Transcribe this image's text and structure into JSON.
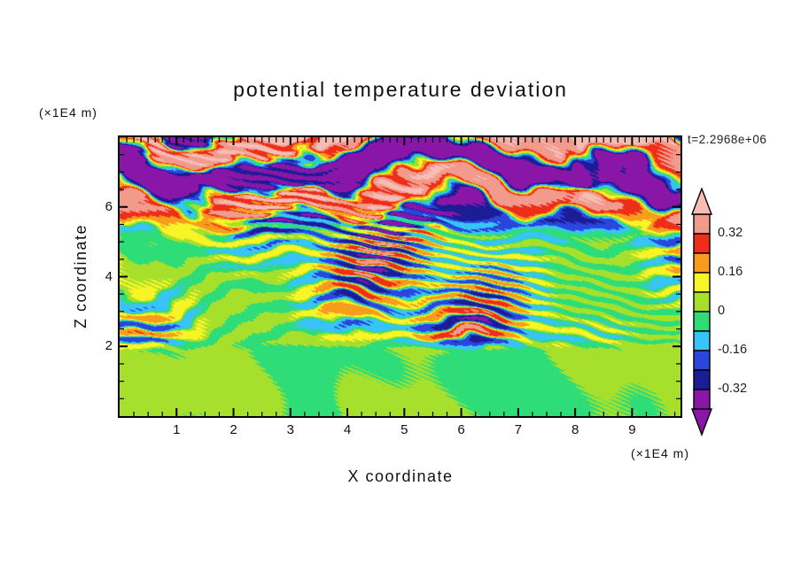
{
  "title": "potential temperature deviation",
  "timestamp_label": "t=2.2968e+06",
  "axes": {
    "x_label": "X coordinate",
    "x_unit": "(×1E4 m)",
    "y_label": "Z coordinate",
    "y_unit": "(×1E4 m)",
    "x_tick_labels": [
      "1",
      "2",
      "3",
      "4",
      "5",
      "6",
      "7",
      "8",
      "9"
    ],
    "x_tick_values": [
      1,
      2,
      3,
      4,
      5,
      6,
      7,
      8,
      9
    ],
    "y_tick_labels": [
      "2",
      "4",
      "6"
    ],
    "y_tick_values": [
      2,
      4,
      6
    ]
  },
  "colorbar": {
    "tick_labels": [
      "0.32",
      "0.16",
      "0",
      "-0.16",
      "-0.32"
    ],
    "tick_values": [
      0.32,
      0.16,
      0,
      -0.16,
      -0.32
    ]
  },
  "chart_data": {
    "type": "heatmap",
    "title": "potential temperature deviation",
    "xlabel": "X coordinate (×1E4 m)",
    "ylabel": "Z coordinate (×1E4 m)",
    "time_annotation": "t=2.2968e+06",
    "x_range": [
      0,
      9.85
    ],
    "z_range": [
      0,
      8.0
    ],
    "contour_interval": 0.08,
    "bin_edges": [
      -0.4,
      -0.32,
      -0.24,
      -0.16,
      -0.08,
      0,
      0.08,
      0.16,
      0.24,
      0.32,
      0.4
    ],
    "bin_colors": [
      "#8a16a8",
      "#8a16a8",
      "#1c1c96",
      "#2a46dc",
      "#38c4f8",
      "#2edc78",
      "#a6e02c",
      "#f8f428",
      "#f89c1e",
      "#ee2e18",
      "#f29a8c",
      "#f5bdb5"
    ],
    "regions": [
      {
        "z_range": [
          0,
          2.05
        ],
        "amplitude": 0.05,
        "description": "well-mixed convective layer: weak anomalies near 0, green background with yellow-green plume blobs"
      },
      {
        "z_range": [
          2.05,
          5.55
        ],
        "amplitude": 0.3,
        "description": "fine horizontal gravity-wave striations alternating between roughly -0.32 and +0.32 (navy/blue/cyan vs yellow/orange/red stripes)"
      },
      {
        "z_range": [
          5.55,
          8.0
        ],
        "amplitude": 0.5,
        "description": "broad high-amplitude bands saturating beyond ±0.40 (salmon/pink positive and purple negative layers) with thin multicolor filaments"
      }
    ]
  }
}
